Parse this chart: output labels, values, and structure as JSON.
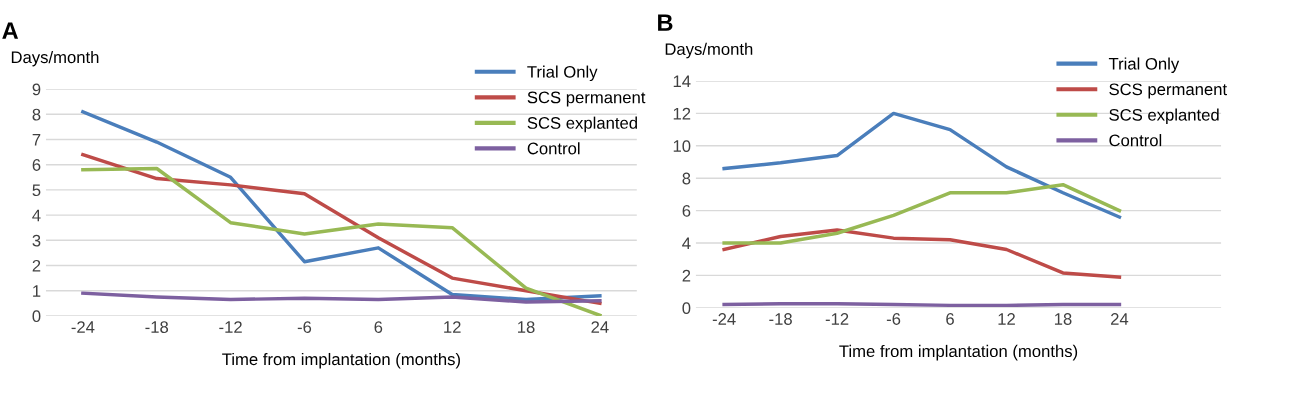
{
  "chart_data": [
    {
      "type": "line",
      "title": "A",
      "ylabel": "Days/month",
      "xlabel": "Time from implantation (months)",
      "categories": [
        "-24",
        "-18",
        "-12",
        "-6",
        "6",
        "12",
        "18",
        "24"
      ],
      "ylim": [
        0,
        9
      ],
      "yticks": [
        0,
        1,
        2,
        3,
        4,
        5,
        6,
        7,
        8,
        9
      ],
      "grid": "y",
      "legend": "top right",
      "series": [
        {
          "name": "Trial Only",
          "color": "#4a7ebb",
          "values": [
            8.1,
            6.9,
            5.5,
            2.15,
            2.7,
            0.85,
            0.65,
            0.8
          ]
        },
        {
          "name": "SCS permanent",
          "color": "#be4b48",
          "values": [
            6.4,
            5.45,
            5.2,
            4.85,
            3.1,
            1.5,
            1.0,
            0.5
          ]
        },
        {
          "name": "SCS explanted",
          "color": "#98b954",
          "values": [
            5.8,
            5.85,
            3.7,
            3.25,
            3.65,
            3.5,
            1.1,
            0.02
          ]
        },
        {
          "name": "Control",
          "color": "#7d60a0",
          "values": [
            0.9,
            0.75,
            0.65,
            0.7,
            0.65,
            0.75,
            0.55,
            0.6
          ]
        }
      ]
    },
    {
      "type": "line",
      "title": "B",
      "ylabel": "Days/month",
      "xlabel": "Time from implantation (months)",
      "categories": [
        "-24",
        "-18",
        "-12",
        "-6",
        "6",
        "12",
        "18",
        "24"
      ],
      "ylim": [
        0,
        14
      ],
      "yticks": [
        0,
        2,
        4,
        6,
        8,
        10,
        12,
        14
      ],
      "grid": "y",
      "legend": "top right",
      "series": [
        {
          "name": "Trial Only",
          "color": "#4a7ebb",
          "values": [
            8.6,
            8.95,
            9.4,
            12.0,
            11.0,
            8.7,
            7.1,
            5.6
          ]
        },
        {
          "name": "SCS permanent",
          "color": "#be4b48",
          "values": [
            3.6,
            4.4,
            4.8,
            4.3,
            4.2,
            3.6,
            2.15,
            1.9
          ]
        },
        {
          "name": "SCS explanted",
          "color": "#98b954",
          "values": [
            4.0,
            4.0,
            4.6,
            5.7,
            7.1,
            7.1,
            7.6,
            6.0
          ]
        },
        {
          "name": "Control",
          "color": "#7d60a0",
          "values": [
            0.2,
            0.25,
            0.25,
            0.2,
            0.15,
            0.15,
            0.2,
            0.2
          ]
        }
      ]
    }
  ]
}
